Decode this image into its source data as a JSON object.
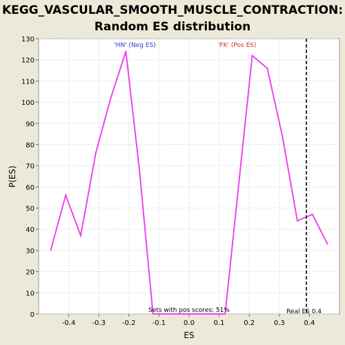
{
  "chart_data": {
    "type": "line",
    "title_line1": "KEGG_VASCULAR_SMOOTH_MUSCLE_CONTRACTION:",
    "title_line2": "Random ES distribution",
    "xlabel": "ES",
    "ylabel": "P(ES)",
    "xlim": [
      -0.5,
      0.5
    ],
    "ylim": [
      0,
      130
    ],
    "xticks": [
      -0.4,
      -0.3,
      -0.2,
      -0.1,
      0.0,
      0.1,
      0.2,
      0.3,
      0.4
    ],
    "xtick_labels": [
      "-0.4",
      "-0.3",
      "-0.2",
      "-0.1",
      "0.0",
      "0.1",
      "0.2",
      "0.3",
      "0.4"
    ],
    "yticks": [
      0,
      10,
      20,
      30,
      40,
      50,
      60,
      70,
      80,
      90,
      100,
      110,
      120,
      130
    ],
    "ytick_labels": [
      "0",
      "10",
      "20",
      "30",
      "40",
      "50",
      "60",
      "70",
      "80",
      "90",
      "100",
      "110",
      "120",
      "130"
    ],
    "grid": true,
    "series": [
      {
        "color": "#ee44ee",
        "x": [
          -0.46,
          -0.41,
          -0.36,
          -0.31,
          -0.26,
          -0.21,
          -0.165,
          -0.12,
          -0.07,
          0.0,
          0.07,
          0.12,
          0.165,
          0.21,
          0.26,
          0.31,
          0.36,
          0.41,
          0.46
        ],
        "y": [
          30,
          56,
          37,
          76,
          102,
          124,
          68,
          0,
          0,
          0,
          0,
          0,
          61,
          122,
          116,
          84,
          44,
          47,
          33
        ]
      }
    ],
    "real_es": 0.39,
    "real_es_color": "#333333",
    "annotations": {
      "neg_label": "'HN' (Neg ES)",
      "neg_color": "#3333cc",
      "pos_label": "'FK' (Pos ES)",
      "pos_color": "#dd2222",
      "pos_scores_text": "Sets with pos scores: 51%",
      "real_es_text": "Real ES 0.4"
    }
  }
}
